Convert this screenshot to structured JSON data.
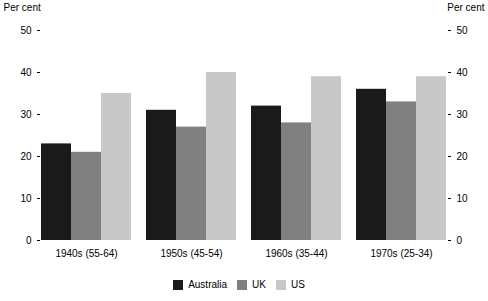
{
  "chart_data": {
    "type": "bar",
    "categories": [
      "1940s (55-64)",
      "1950s (45-54)",
      "1960s (35-44)",
      "1970s (25-34)"
    ],
    "series": [
      {
        "name": "Australia",
        "color": "#1a1a1a",
        "values": [
          23,
          31,
          32,
          36
        ]
      },
      {
        "name": "UK",
        "color": "#808080",
        "values": [
          21,
          27,
          28,
          33
        ]
      },
      {
        "name": "US",
        "color": "#c8c8c8",
        "values": [
          35,
          40,
          39,
          39
        ]
      }
    ],
    "ylabel": "Per cent",
    "y2label": "Per cent",
    "ylim": [
      0,
      50
    ],
    "yticks": [
      0,
      10,
      20,
      30,
      40,
      50
    ],
    "y2lim": [
      0,
      50
    ],
    "y2ticks": [
      0,
      10,
      20,
      30,
      40,
      50
    ],
    "grid": false,
    "legend": "bottom"
  }
}
